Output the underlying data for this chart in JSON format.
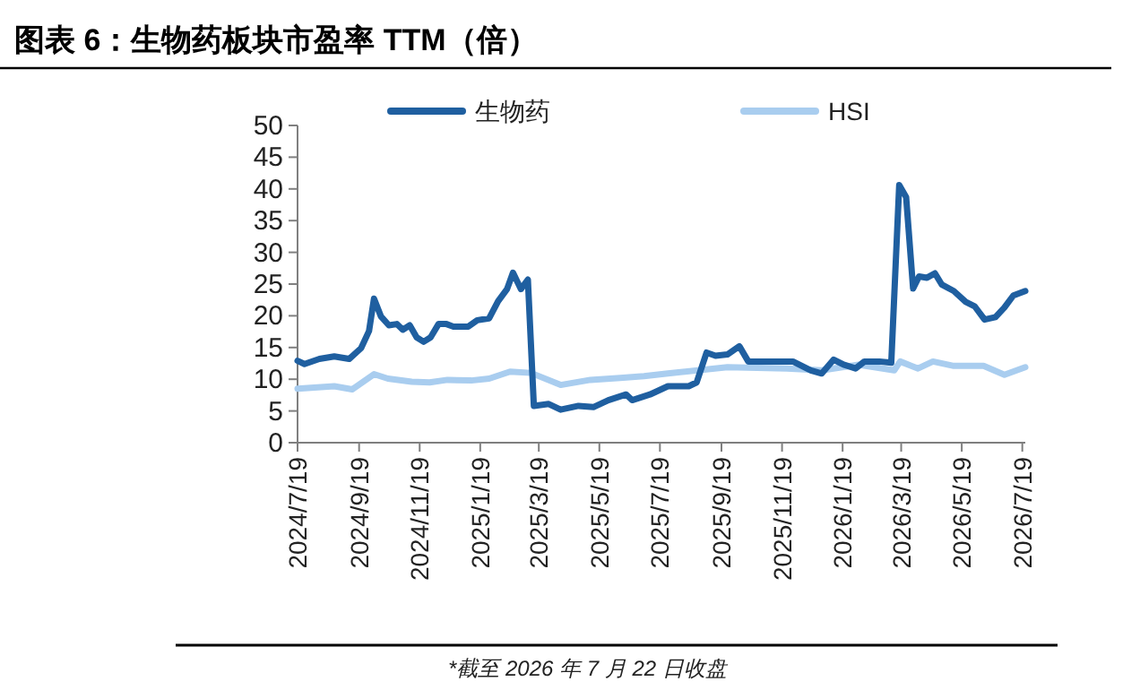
{
  "chart_data": {
    "type": "line",
    "title": "图表 6：生物药板块市盈率 TTM（倍）",
    "annotations": [
      "*截至 2026 年 7 月 22 日收盘"
    ],
    "legend": "top",
    "xlim": [
      "2024-07-19",
      "2026-07-22"
    ],
    "xticks": [
      {
        "value": "2024-07-19",
        "label": "2024/7/19"
      },
      {
        "value": "2024-09-19",
        "label": "2024/9/19"
      },
      {
        "value": "2024-11-19",
        "label": "2024/11/19"
      },
      {
        "value": "2025-01-19",
        "label": "2025/1/19"
      },
      {
        "value": "2025-03-19",
        "label": "2025/3/19"
      },
      {
        "value": "2025-05-19",
        "label": "2025/5/19"
      },
      {
        "value": "2025-07-19",
        "label": "2025/7/19"
      },
      {
        "value": "2025-09-19",
        "label": "2025/9/19"
      },
      {
        "value": "2025-11-19",
        "label": "2025/11/19"
      },
      {
        "value": "2026-01-19",
        "label": "2026/1/19"
      },
      {
        "value": "2026-03-19",
        "label": "2026/3/19"
      },
      {
        "value": "2026-05-19",
        "label": "2026/5/19"
      },
      {
        "value": "2026-07-19",
        "label": "2026/7/19"
      }
    ],
    "ylim": [
      0,
      50
    ],
    "yticks": [
      0,
      5,
      10,
      15,
      20,
      25,
      30,
      35,
      40,
      45,
      50
    ],
    "series": [
      {
        "name": "生物药",
        "color": "#1f5fa0",
        "x": [
          "2024-07-19",
          "2024-07-26",
          "2024-08-10",
          "2024-08-25",
          "2024-09-09",
          "2024-09-21",
          "2024-09-29",
          "2024-10-04",
          "2024-10-11",
          "2024-10-19",
          "2024-10-27",
          "2024-11-02",
          "2024-11-09",
          "2024-11-16",
          "2024-11-23",
          "2024-11-30",
          "2024-12-08",
          "2024-12-16",
          "2024-12-23",
          "2025-01-07",
          "2025-01-16",
          "2025-01-28",
          "2025-02-06",
          "2025-02-15",
          "2025-02-21",
          "2025-03-01",
          "2025-03-08",
          "2025-03-14",
          "2025-03-29",
          "2025-04-10",
          "2025-04-28",
          "2025-05-13",
          "2025-05-28",
          "2025-06-15",
          "2025-06-21",
          "2025-07-09",
          "2025-07-27",
          "2025-08-17",
          "2025-08-25",
          "2025-09-04",
          "2025-09-13",
          "2025-09-25",
          "2025-10-07",
          "2025-10-16",
          "2025-11-30",
          "2025-12-18",
          "2025-12-29",
          "2026-01-10",
          "2026-01-20",
          "2026-02-01",
          "2026-02-10",
          "2026-02-25",
          "2026-03-09",
          "2026-03-17",
          "2026-03-24",
          "2026-03-31",
          "2026-04-06",
          "2026-04-14",
          "2026-04-22",
          "2026-04-29",
          "2026-05-11",
          "2026-05-23",
          "2026-06-01",
          "2026-06-11",
          "2026-06-22",
          "2026-07-01",
          "2026-07-10",
          "2026-07-22"
        ],
        "values": [
          12.9,
          12.4,
          13.2,
          13.6,
          13.2,
          14.9,
          17.6,
          22.7,
          19.9,
          18.5,
          18.7,
          17.8,
          18.5,
          16.6,
          15.9,
          16.6,
          18.7,
          18.7,
          18.3,
          18.3,
          19.3,
          19.6,
          22.3,
          24.2,
          26.8,
          24.2,
          25.7,
          5.8,
          6.1,
          5.2,
          5.8,
          5.6,
          6.7,
          7.6,
          6.7,
          7.6,
          8.9,
          8.9,
          9.5,
          14.2,
          13.7,
          13.9,
          15.2,
          12.8,
          12.8,
          11.4,
          10.9,
          13.1,
          12.3,
          11.7,
          12.8,
          12.8,
          12.6,
          40.6,
          38.7,
          24.3,
          26.2,
          26.0,
          26.7,
          24.9,
          23.9,
          22.2,
          21.5,
          19.4,
          19.8,
          21.3,
          23.2,
          23.9
        ]
      },
      {
        "name": "HSI",
        "color": "#a9cdef",
        "x": [
          "2024-07-19",
          "2024-08-25",
          "2024-09-12",
          "2024-10-04",
          "2024-10-18",
          "2024-11-11",
          "2024-11-29",
          "2024-12-17",
          "2025-01-10",
          "2025-01-28",
          "2025-02-18",
          "2025-03-11",
          "2025-04-10",
          "2025-05-10",
          "2025-06-09",
          "2025-07-03",
          "2025-07-27",
          "2025-09-25",
          "2025-11-24",
          "2025-12-29",
          "2026-02-04",
          "2026-03-12",
          "2026-03-18",
          "2026-04-05",
          "2026-04-20",
          "2026-05-11",
          "2026-06-10",
          "2026-07-01",
          "2026-07-22"
        ],
        "values": [
          8.5,
          8.9,
          8.4,
          10.8,
          10.1,
          9.6,
          9.5,
          9.9,
          9.8,
          10.1,
          11.2,
          11.0,
          9.1,
          9.9,
          10.2,
          10.5,
          10.9,
          11.9,
          11.7,
          11.4,
          12.3,
          11.4,
          12.8,
          11.7,
          12.8,
          12.1,
          12.1,
          10.7,
          11.9
        ]
      }
    ]
  }
}
